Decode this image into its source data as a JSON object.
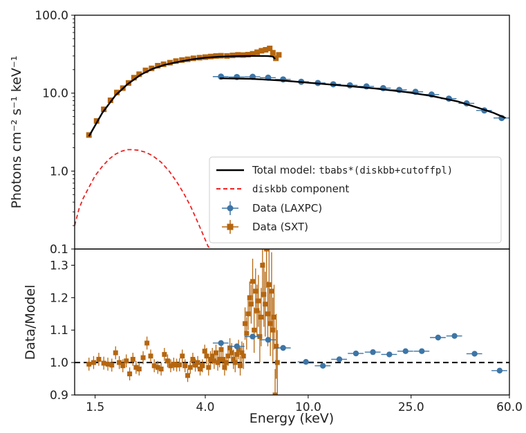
{
  "chart_data": [
    {
      "type": "line",
      "panel": "top",
      "ylabel": "Photons cm⁻² s⁻¹ keV⁻¹",
      "yscale": "log",
      "ylim": [
        0.1,
        100
      ],
      "yticks": [
        "0.1",
        "1.0",
        "10.0",
        "100.0"
      ],
      "xscale": "log",
      "xlim": [
        1.25,
        60
      ],
      "legend": {
        "placement": "lower-right",
        "entries": [
          {
            "key": "total",
            "prefix": "Total model: ",
            "code": "tbabs*(diskbb+cutoffpl)",
            "suffix": "",
            "color": "#000000",
            "style": "solid"
          },
          {
            "key": "diskbb",
            "prefix": "",
            "code": "diskbb",
            "suffix": " component",
            "color": "#ee2222",
            "style": "dashed"
          },
          {
            "key": "laxpc",
            "prefix": "Data (LAXPC)",
            "code": "",
            "suffix": "",
            "color": "#3d75a6",
            "style": "errorbar"
          },
          {
            "key": "sxt",
            "prefix": "Data (SXT)",
            "code": "",
            "suffix": "",
            "color": "#b5660f",
            "style": "errorbar"
          }
        ]
      },
      "series": [
        {
          "name": "Data (SXT)",
          "color": "#b5660f",
          "x": [
            1.42,
            1.52,
            1.62,
            1.72,
            1.82,
            1.92,
            2.02,
            2.12,
            2.22,
            2.35,
            2.48,
            2.62,
            2.76,
            2.92,
            3.08,
            3.25,
            3.42,
            3.6,
            3.8,
            4.0,
            4.2,
            4.4,
            4.6,
            4.85,
            5.1,
            5.35,
            5.6,
            5.85,
            6.1,
            6.35,
            6.6,
            6.85,
            7.1,
            7.3,
            7.5,
            7.7
          ],
          "y": [
            2.9,
            4.4,
            6.2,
            8.1,
            10.2,
            11.6,
            13.5,
            15.8,
            17.5,
            19.6,
            20.8,
            22.5,
            23.5,
            24.6,
            25.8,
            26.6,
            27.2,
            28.0,
            28.5,
            29.0,
            29.5,
            30.0,
            30.2,
            30.0,
            30.5,
            31.0,
            30.8,
            31.2,
            32.0,
            33.5,
            35.0,
            36.0,
            37.5,
            33.0,
            28.0,
            31.0
          ],
          "xerr": 0.03,
          "yerr_frac": 0.06
        },
        {
          "name": "Data (LAXPC)",
          "color": "#3d75a6",
          "x": [
            4.6,
            5.3,
            6.1,
            7.0,
            8.0,
            9.4,
            10.9,
            12.5,
            14.5,
            16.8,
            19.5,
            22.5,
            26.0,
            30.0,
            35.0,
            41.0,
            48.0,
            56.0
          ],
          "y": [
            16.3,
            16.1,
            16.2,
            15.8,
            15.0,
            14.0,
            13.5,
            13.0,
            12.6,
            12.2,
            11.6,
            11.0,
            10.4,
            9.6,
            8.5,
            7.4,
            6.0,
            4.8
          ],
          "xerr_frac": 0.07,
          "yerr_frac": 0.035
        },
        {
          "name": "Total model",
          "color": "#000000",
          "x": [
            1.42,
            1.6,
            1.8,
            2.0,
            2.25,
            2.5,
            2.8,
            3.2,
            3.6,
            4.0,
            4.5,
            5.0,
            5.5,
            6.0,
            6.5,
            7.0,
            7.3,
            7.45
          ],
          "y": [
            2.8,
            5.6,
            9.4,
            13.0,
            17.2,
            20.5,
            23.2,
            25.5,
            27.3,
            28.5,
            29.3,
            29.7,
            29.9,
            30.0,
            30.0,
            29.9,
            29.5,
            27.5
          ]
        },
        {
          "name": "Total model (LAXPC)",
          "color": "#000000",
          "x": [
            4.55,
            6,
            8,
            10,
            14,
            18,
            24,
            30,
            38,
            46,
            52,
            58
          ],
          "y": [
            15.5,
            15.3,
            14.5,
            13.6,
            12.4,
            11.5,
            10.3,
            9.2,
            7.8,
            6.4,
            5.6,
            4.8
          ]
        },
        {
          "name": "diskbb component",
          "color": "#ee2222",
          "x": [
            1.25,
            1.3,
            1.35,
            1.42,
            1.5,
            1.6,
            1.7,
            1.8,
            1.9,
            2.0,
            2.1,
            2.2,
            2.35,
            2.5,
            2.7,
            2.9,
            3.1,
            3.3,
            3.5,
            3.7,
            3.9,
            4.1,
            4.2
          ],
          "y": [
            0.2,
            0.33,
            0.45,
            0.62,
            0.87,
            1.15,
            1.43,
            1.65,
            1.8,
            1.88,
            1.88,
            1.85,
            1.75,
            1.58,
            1.3,
            1.0,
            0.73,
            0.52,
            0.36,
            0.24,
            0.16,
            0.108,
            0.1
          ]
        }
      ]
    },
    {
      "type": "scatter",
      "panel": "bottom",
      "xlabel": "Energy (keV)",
      "ylabel": "Data/Model",
      "xscale": "log",
      "xlim": [
        1.25,
        60
      ],
      "xticks": [
        "1.5",
        "4.0",
        "10.0",
        "25.0",
        "60.0"
      ],
      "ylim": [
        0.9,
        1.35
      ],
      "yticks": [
        "0.9",
        "1.0",
        "1.1",
        "1.2",
        "1.3"
      ],
      "reference_line": 1.0,
      "series": [
        {
          "name": "Data (SXT)",
          "color": "#b5660f",
          "x": [
            1.42,
            1.48,
            1.55,
            1.62,
            1.68,
            1.74,
            1.8,
            1.86,
            1.92,
            1.98,
            2.04,
            2.1,
            2.16,
            2.22,
            2.3,
            2.38,
            2.46,
            2.54,
            2.62,
            2.7,
            2.78,
            2.86,
            2.94,
            3.02,
            3.1,
            3.18,
            3.26,
            3.34,
            3.42,
            3.5,
            3.58,
            3.66,
            3.74,
            3.82,
            3.9,
            3.98,
            4.05,
            4.12,
            4.19,
            4.26,
            4.33,
            4.4,
            4.47,
            4.54,
            4.61,
            4.68,
            4.75,
            4.82,
            4.9,
            4.98,
            5.06,
            5.14,
            5.22,
            5.3,
            5.38,
            5.46,
            5.54,
            5.62,
            5.7,
            5.78,
            5.86,
            5.94,
            6.02,
            6.1,
            6.18,
            6.26,
            6.34,
            6.42,
            6.5,
            6.58,
            6.66,
            6.74,
            6.82,
            6.9,
            6.98,
            7.06,
            7.14,
            7.22,
            7.3,
            7.38,
            7.45,
            7.52,
            7.6
          ],
          "y": [
            0.995,
            1.0,
            1.01,
            0.998,
            0.995,
            0.992,
            1.03,
            1.0,
            0.99,
            1.005,
            0.965,
            1.01,
            0.985,
            0.98,
            1.015,
            1.06,
            1.02,
            0.99,
            0.985,
            0.98,
            1.025,
            1.005,
            0.99,
            0.995,
            0.992,
            0.993,
            1.02,
            0.99,
            0.96,
            0.985,
            1.01,
            0.992,
            1.0,
            0.98,
            0.99,
            1.035,
            1.02,
            0.985,
            1.01,
            1.02,
            1.005,
            1.03,
            1.0,
            1.01,
            1.04,
            1.01,
            0.985,
            1.0,
            1.02,
            1.045,
            1.03,
            1.01,
            1.0,
            1.025,
            1.04,
            0.99,
            1.03,
            1.02,
            1.12,
            1.09,
            1.15,
            1.2,
            1.18,
            1.25,
            1.1,
            1.22,
            1.16,
            1.19,
            1.08,
            1.14,
            1.3,
            1.21,
            1.18,
            1.35,
            1.15,
            1.24,
            1.12,
            1.22,
            1.1,
            1.14,
            0.9,
            1.05,
            1.0
          ],
          "yerr": [
            0.02,
            0.02,
            0.02,
            0.02,
            0.02,
            0.02,
            0.02,
            0.02,
            0.02,
            0.02,
            0.02,
            0.02,
            0.02,
            0.02,
            0.02,
            0.02,
            0.02,
            0.02,
            0.02,
            0.02,
            0.02,
            0.02,
            0.02,
            0.02,
            0.02,
            0.02,
            0.02,
            0.02,
            0.02,
            0.02,
            0.02,
            0.02,
            0.02,
            0.02,
            0.02,
            0.02,
            0.025,
            0.025,
            0.025,
            0.025,
            0.025,
            0.025,
            0.025,
            0.025,
            0.025,
            0.025,
            0.025,
            0.025,
            0.03,
            0.03,
            0.03,
            0.03,
            0.03,
            0.03,
            0.03,
            0.03,
            0.035,
            0.04,
            0.05,
            0.05,
            0.05,
            0.05,
            0.06,
            0.07,
            0.07,
            0.07,
            0.08,
            0.08,
            0.08,
            0.09,
            0.1,
            0.1,
            0.1,
            0.12,
            0.1,
            0.12,
            0.1,
            0.12,
            0.1,
            0.1,
            0.08,
            0.1,
            0.1
          ]
        },
        {
          "name": "Data (LAXPC)",
          "color": "#3d75a6",
          "x": [
            4.6,
            5.3,
            6.1,
            7.0,
            8.0,
            9.8,
            11.4,
            13.2,
            15.3,
            17.8,
            20.6,
            23.8,
            27.5,
            31.8,
            36.8,
            44.0,
            55.0
          ],
          "y": [
            1.06,
            1.05,
            1.08,
            1.07,
            1.045,
            1.002,
            0.99,
            1.01,
            1.028,
            1.032,
            1.025,
            1.035,
            1.035,
            1.077,
            1.082,
            1.027,
            0.975
          ],
          "xerr_frac": 0.07,
          "yerr": 0.008
        }
      ]
    }
  ]
}
